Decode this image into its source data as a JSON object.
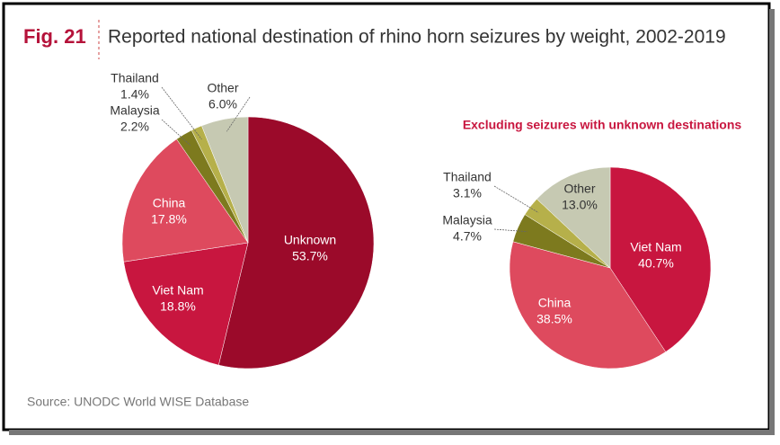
{
  "figure": "Fig. 21",
  "title": "Reported national destination of rhino horn seizures by weight, 2002-2019",
  "source": "Source: UNODC World WISE Database",
  "chart_data": [
    {
      "type": "pie",
      "categories": [
        "Unknown",
        "Viet Nam",
        "China",
        "Malaysia",
        "Thailand",
        "Other"
      ],
      "values": [
        53.7,
        18.8,
        17.8,
        2.2,
        1.4,
        6.0
      ],
      "value_labels": [
        "53.7%",
        "18.8%",
        "17.8%",
        "2.2%",
        "1.4%",
        "6.0%"
      ],
      "colors": [
        "#9b0a2a",
        "#c8163f",
        "#de4a5e",
        "#7d7a1e",
        "#b6b04a",
        "#c6c9b2"
      ]
    },
    {
      "type": "pie",
      "subtitle": "Excluding seizures with unknown destinations",
      "categories": [
        "Viet Nam",
        "China",
        "Malaysia",
        "Thailand",
        "Other"
      ],
      "values": [
        40.7,
        38.5,
        4.7,
        3.1,
        13.0
      ],
      "value_labels": [
        "40.7%",
        "38.5%",
        "4.7%",
        "3.1%",
        "13.0%"
      ],
      "colors": [
        "#c8163f",
        "#de4a5e",
        "#7d7a1e",
        "#b6b04a",
        "#c6c9b2"
      ]
    }
  ]
}
